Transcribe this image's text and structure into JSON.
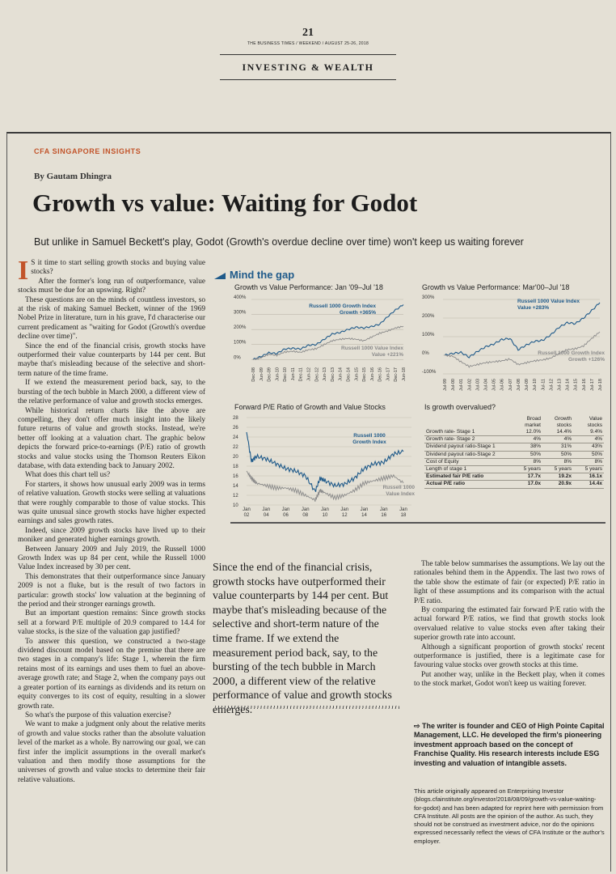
{
  "masthead": {
    "page_number": "21",
    "dateline": "THE BUSINESS TIMES / WEEKEND / AUGUST 25-26, 2018",
    "section": "INVESTING & WEALTH"
  },
  "article": {
    "kicker": "CFA SINGAPORE INSIGHTS",
    "byline": "By Gautam Dhingra",
    "headline": "Growth vs value: Waiting for Godot",
    "standfirst": "But unlike in Samuel Beckett's play, Godot (Growth's overdue decline over time) won't keep us waiting forever",
    "dropcap": "I",
    "col1": [
      "S it time to start selling growth stocks and buying value stocks?",
      "After the former's long run of outperformance, value stocks must be due for an upswing. Right?",
      "These questions are on the minds of countless investors, so at the risk of making Samuel Beckett, winner of the 1969 Nobel Prize in literature, turn in his grave, I'd characterise our current predicament as \"waiting for Godot (Growth's overdue decline over time)\".",
      "Since the end of the financial crisis, growth stocks have outperformed their value counterparts by 144 per cent. But maybe that's misleading because of the selective and short-term nature of the time frame.",
      "If we extend the measurement period back, say, to the bursting of the tech bubble in March 2000, a different view of the relative performance of value and growth stocks emerges.",
      "While historical return charts like the above are compelling, they don't offer much insight into the likely future returns of value and growth stocks. Instead, we're better off looking at a valuation chart. The graphic below depicts the forward price-to-earnings (P/E) ratio of growth stocks and value stocks using the Thomson Reuters Eikon database, with data extending back to January 2002.",
      "What does this chart tell us?",
      "For starters, it shows how unusual early 2009 was in terms of relative valuation. Growth stocks were selling at valuations that were roughly comparable to those of value stocks. This was quite unusual since growth stocks have higher expected earnings and sales growth rates.",
      "Indeed, since 2009 growth stocks have lived up to their moniker and generated higher earnings growth.",
      "Between January 2009 and July 2019, the Russell 1000 Growth Index was up 84 per cent, while the Russell 1000 Value Index increased by 30 per cent.",
      "This demonstrates that their outperformance since January 2009 is not a fluke, but is the result of two factors in particular: growth stocks' low valuation at the beginning of the period and their stronger earnings growth.",
      "But an important question remains: Since growth stocks sell at a forward P/E multiple of 20.9 compared to 14.4 for value stocks, is the size of the valuation gap justified?",
      "To answer this question, we constructed a two-stage dividend discount model based on the premise that there are two stages in a company's life: Stage 1, wherein the firm retains most of its earnings and uses them to fuel an above-average growth rate; and Stage 2, when the company pays out a greater portion of its earnings as dividends and its return on equity converges to its cost of equity, resulting in a slower growth rate.",
      "So what's the purpose of this valuation exercise?",
      "We want to make a judgment only about the relative merits of growth and value stocks rather than the absolute valuation level of the market as a whole. By narrowing our goal, we can first infer the implicit assumptions in the overall market's valuation and then modify those assumptions for the universes of growth and value stocks to determine their fair relative valuations."
    ],
    "pullquote": "Since the end of the financial crisis, growth stocks have outperformed their value counterparts by 144 per cent. But maybe that's misleading because of the selective and short-term nature of the time frame. If we extend the measurement period back, say, to the bursting of the tech bubble in March 2000, a different view of the relative performance of value and growth stocks emerges.",
    "col3": [
      "The table below summarises the assumptions. We lay out the rationales behind them in the Appendix. The last two rows of the table show the estimate of fair (or expected) P/E ratio in light of these assumptions and its comparison with the actual P/E ratio.",
      "By comparing the estimated fair forward P/E ratio with the actual forward P/E ratios, we find that growth stocks look overvalued relative to value stocks even after taking their superior growth rate into account.",
      "Although a significant proportion of growth stocks' recent outperformance is justified, there is a legitimate case for favouring value stocks over growth stocks at this time.",
      "Put another way, unlike in the Beckett play, when it comes to the stock market, Godot won't keep us waiting forever."
    ],
    "bio": "⇨ The writer is founder and CEO of High Pointe Capital Management, LLC. He developed the firm's pioneering investment approach based on the concept of Franchise Quality. His research interests include ESG investing and valuation of intangible assets.",
    "note": "This article originally appeared on Enterprising Investor (blogs.cfainstitute.org/investor/2018/08/09/growth-vs-value-waiting-for-godot) and has been adapted for reprint here with permission from CFA Institute. All posts are the opinion of the author. As such, they should not be construed as investment advice, nor do the opinions expressed necessarily reflect the views of CFA Institute or the author's employer."
  },
  "graphic": {
    "title": "Mind the gap",
    "table_title": "Is growth overvalued?",
    "table_headers": [
      "",
      "Broad market",
      "Growth stocks",
      "Value stocks"
    ],
    "table_rows": [
      [
        "Growth rate- Stage 1",
        "12.0%",
        "14.4%",
        "9.4%"
      ],
      [
        "Growth rate- Stage 2",
        "4%",
        "4%",
        "4%"
      ],
      [
        "Dividend payout ratio-Stage 1",
        "38%",
        "31%",
        "43%"
      ],
      [
        "Dividend payout ratio-Stage 2",
        "50%",
        "50%",
        "50%"
      ],
      [
        "Cost of Equity",
        "8%",
        "8%",
        "8%"
      ],
      [
        "Length of stage 1",
        "5 years",
        "5 years",
        "5 years"
      ],
      [
        "Estimated fair P/E ratio",
        "17.7x",
        "19.2x",
        "16.1x"
      ],
      [
        "Actual P/E ratio",
        "17.0x",
        "20.9x",
        "14.4x"
      ]
    ]
  },
  "colors": {
    "accent": "#c2542a",
    "chart_blue": "#1f5a8a",
    "chart_grey": "#8a8a8a"
  },
  "chart_data": [
    {
      "type": "line",
      "title": "Growth vs Value Performance: Jan '09–Jul '18",
      "x": [
        "Dec-08",
        "Jun-09",
        "Dec-09",
        "Jun-10",
        "Dec-10",
        "Jun-11",
        "Dec-11",
        "Jun-12",
        "Dec-12",
        "Jun-13",
        "Dec-13",
        "Jun-14",
        "Dec-14",
        "Jun-15",
        "Dec-15",
        "Jun-16",
        "Dec-16",
        "Jun-17",
        "Dec-17",
        "Jun-18"
      ],
      "y_ticks": [
        "400%",
        "300%",
        "200%",
        "100%",
        "0%"
      ],
      "ylim": [
        -20,
        400
      ],
      "series": [
        {
          "name": "Russell 1000 Growth Index",
          "annotation": "Growth +365%",
          "color": "#1f5a8a",
          "values": [
            0,
            20,
            45,
            40,
            70,
            75,
            70,
            95,
            100,
            135,
            170,
            180,
            200,
            215,
            210,
            220,
            235,
            285,
            330,
            365
          ]
        },
        {
          "name": "Russell 1000 Value Index",
          "annotation": "Value +221%",
          "color": "#8a8a8a",
          "values": [
            0,
            12,
            35,
            28,
            50,
            55,
            48,
            65,
            72,
            100,
            125,
            135,
            140,
            135,
            125,
            150,
            175,
            190,
            210,
            221
          ]
        }
      ]
    },
    {
      "type": "line",
      "title": "Growth vs Value Performance: Mar'00–Jul '18",
      "x": [
        "Jul-99",
        "Jul-00",
        "Jul-01",
        "Jul-02",
        "Jul-03",
        "Jul-04",
        "Jul-05",
        "Jul-06",
        "Jul-07",
        "Jul-08",
        "Jul-09",
        "Jul-10",
        "Jul-11",
        "Jul-12",
        "Jul-13",
        "Jul-14",
        "Jul-15",
        "Jul-16",
        "Jul-17",
        "Jul-18"
      ],
      "y_ticks": [
        "300%",
        "200%",
        "100%",
        "0%",
        "-100%"
      ],
      "ylim": [
        -100,
        300
      ],
      "series": [
        {
          "name": "Russell 1000 Value Index",
          "annotation": "Value +283%",
          "color": "#1f5a8a",
          "values": [
            0,
            10,
            15,
            -10,
            20,
            45,
            60,
            85,
            90,
            30,
            55,
            75,
            80,
            110,
            150,
            175,
            170,
            200,
            240,
            283
          ]
        },
        {
          "name": "Russell 1000 Growth Index",
          "annotation": "Growth +126%",
          "color": "#8a8a8a",
          "values": [
            0,
            -5,
            -35,
            -60,
            -50,
            -40,
            -35,
            -30,
            -20,
            -50,
            -40,
            -30,
            -25,
            -15,
            10,
            30,
            35,
            50,
            90,
            126
          ]
        }
      ]
    },
    {
      "type": "line",
      "title": "Forward P/E Ratio of Growth and Value Stocks",
      "x": [
        "Jan 02",
        "Jan 04",
        "Jan 06",
        "Jan 08",
        "Jan 10",
        "Jan 12",
        "Jan 14",
        "Jan 16",
        "Jan 18"
      ],
      "x_values": [
        2002,
        2004,
        2006,
        2008,
        2010,
        2012,
        2014,
        2016,
        2018
      ],
      "ylim": [
        10,
        28
      ],
      "y_ticks": [
        28,
        26,
        24,
        22,
        20,
        18,
        16,
        14,
        12,
        10
      ],
      "series": [
        {
          "name": "Russell 1000 Growth Index",
          "color": "#1f5a8a",
          "points": [
            [
              2002,
              25
            ],
            [
              2002.5,
              19
            ],
            [
              2003,
              20
            ],
            [
              2004,
              19.5
            ],
            [
              2005,
              18.5
            ],
            [
              2006,
              17.5
            ],
            [
              2007,
              17
            ],
            [
              2008,
              16
            ],
            [
              2009,
              12.8
            ],
            [
              2009.5,
              15.5
            ],
            [
              2010,
              15
            ],
            [
              2011,
              14
            ],
            [
              2012,
              14.3
            ],
            [
              2013,
              15.5
            ],
            [
              2014,
              17.5
            ],
            [
              2015,
              18.5
            ],
            [
              2016,
              18.8
            ],
            [
              2017,
              20.5
            ],
            [
              2018,
              21
            ]
          ]
        },
        {
          "name": "Russell 1000 Value Index",
          "color": "#8a8a8a",
          "points": [
            [
              2002,
              17
            ],
            [
              2002.5,
              15.5
            ],
            [
              2003,
              14.5
            ],
            [
              2004,
              14
            ],
            [
              2005,
              13.5
            ],
            [
              2006,
              13.5
            ],
            [
              2007,
              13
            ],
            [
              2008,
              12
            ],
            [
              2009,
              11
            ],
            [
              2009.5,
              13
            ],
            [
              2010,
              12.5
            ],
            [
              2011,
              11.5
            ],
            [
              2012,
              12
            ],
            [
              2013,
              13
            ],
            [
              2014,
              14.5
            ],
            [
              2015,
              15
            ],
            [
              2016,
              15.5
            ],
            [
              2017,
              16
            ],
            [
              2018,
              14.5
            ]
          ]
        }
      ]
    }
  ]
}
